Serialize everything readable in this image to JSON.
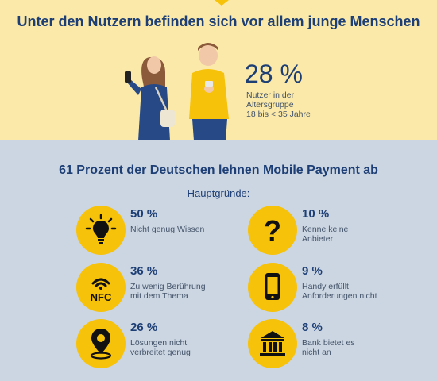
{
  "header": {
    "title": "Unter den Nutzern befinden sich vor allem junge Menschen",
    "percent": "28 %",
    "desc_lines": [
      "Nutzer in der",
      "Altersgruppe",
      "18 bis < 35 Jahre"
    ]
  },
  "main": {
    "title": "61 Prozent der Deutschen lehnen Mobile Payment ab",
    "subtitle": "Hauptgründe:",
    "reasons": [
      {
        "icon": "lightbulb-icon",
        "percent": "50 %",
        "lines": [
          "Nicht genug Wissen"
        ]
      },
      {
        "icon": "question-icon",
        "percent": "10 %",
        "lines": [
          "Kenne keine",
          "Anbieter"
        ]
      },
      {
        "icon": "nfc-icon",
        "icon_text": "NFC",
        "percent": "36 %",
        "lines": [
          "Zu wenig Berührung",
          "mit dem Thema"
        ]
      },
      {
        "icon": "smartphone-icon",
        "percent": "9 %",
        "lines": [
          "Handy erfüllt",
          "Anforderungen nicht"
        ]
      },
      {
        "icon": "location-pin-icon",
        "percent": "26 %",
        "lines": [
          "Lösungen nicht",
          "verbreitet genug"
        ]
      },
      {
        "icon": "bank-icon",
        "percent": "8 %",
        "lines": [
          "Bank bietet es",
          "nicht an"
        ]
      }
    ]
  },
  "colors": {
    "accent_yellow": "#f7c20a",
    "top_background": "#fbe9a9",
    "bottom_background": "#ccd6e2",
    "text_navy": "#1d3f75"
  }
}
